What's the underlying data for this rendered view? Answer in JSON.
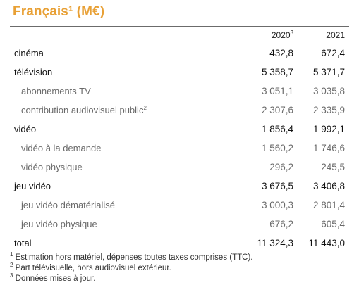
{
  "title": "Français¹ (M€)",
  "columns": {
    "c2020": "2020",
    "c2020_sup": "3",
    "c2021": "2021"
  },
  "rows": [
    {
      "label": "cinéma",
      "v2020": "432,8",
      "v2021": "672,4"
    },
    {
      "label": "télévision",
      "v2020": "5 358,7",
      "v2021": "5 371,7"
    },
    {
      "label": "abonnements TV",
      "v2020": "3 051,1",
      "v2021": "3 035,8"
    },
    {
      "label": "contribution audiovisuel public",
      "label_sup": "2",
      "v2020": "2 307,6",
      "v2021": "2 335,9"
    },
    {
      "label": "vidéo",
      "v2020": "1 856,4",
      "v2021": "1 992,1"
    },
    {
      "label": "vidéo à la demande",
      "v2020": "1 560,2",
      "v2021": "1 746,6"
    },
    {
      "label": "vidéo physique",
      "v2020": "296,2",
      "v2021": "245,5"
    },
    {
      "label": "jeu vidéo",
      "v2020": "3 676,5",
      "v2021": "3 406,8"
    },
    {
      "label": "jeu vidéo dématérialisé",
      "v2020": "3 000,3",
      "v2021": "2 801,4"
    },
    {
      "label": "jeu vidéo physique",
      "v2020": "676,2",
      "v2021": "605,4"
    },
    {
      "label": "total",
      "v2020": "11 324,3",
      "v2021": "11 443,0"
    }
  ],
  "footnotes": [
    {
      "marker": "1",
      "text": " Estimation hors matériel, dépenses toutes taxes comprises (TTC)."
    },
    {
      "marker": "2",
      "text": " Part télévisuelle, hors audiovisuel extérieur."
    },
    {
      "marker": "3",
      "text": " Données mises à jour."
    }
  ],
  "colors": {
    "title": "#e8a035",
    "sub_text": "#6a6a6a"
  }
}
